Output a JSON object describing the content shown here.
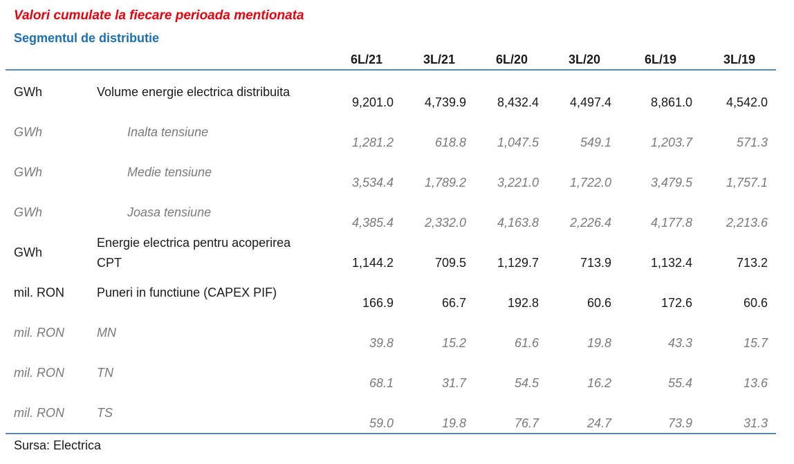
{
  "title": "Valori cumulate la fiecare perioada mentionata",
  "subtitle": "Segmentul de distributie",
  "columns": [
    "6L/21",
    "3L/21",
    "6L/20",
    "3L/20",
    "6L/19",
    "3L/19"
  ],
  "rows": [
    {
      "unit": "GWh",
      "label": "Volume energie electrica distribuita",
      "values": [
        "9,201.0",
        "4,739.9",
        "8,432.4",
        "4,497.4",
        "8,861.0",
        "4,542.0"
      ]
    },
    {
      "unit": "GWh",
      "label": "Inalta tensiune",
      "values": [
        "1,281.2",
        "618.8",
        "1,047.5",
        "549.1",
        "1,203.7",
        "571.3"
      ]
    },
    {
      "unit": "GWh",
      "label": "Medie tensiune",
      "values": [
        "3,534.4",
        "1,789.2",
        "3,221.0",
        "1,722.0",
        "3,479.5",
        "1,757.1"
      ]
    },
    {
      "unit": "GWh",
      "label": "Joasa tensiune",
      "values": [
        "4,385.4",
        "2,332.0",
        "4,163.8",
        "2,226.4",
        "4,177.8",
        "2,213.6"
      ]
    },
    {
      "unit": "GWh",
      "label_line1": "Energie electrica pentru acoperirea",
      "label_line2": "CPT",
      "values": [
        "1,144.2",
        "709.5",
        "1,129.7",
        "713.9",
        "1,132.4",
        "713.2"
      ]
    },
    {
      "unit": "mil. RON",
      "label": "Puneri in functiune (CAPEX PIF)",
      "values": [
        "166.9",
        "66.7",
        "192.8",
        "60.6",
        "172.6",
        "60.6"
      ]
    },
    {
      "unit": "mil. RON",
      "label": "MN",
      "values": [
        "39.8",
        "15.2",
        "61.6",
        "19.8",
        "43.3",
        "15.7"
      ]
    },
    {
      "unit": "mil. RON",
      "label": "TN",
      "values": [
        "68.1",
        "31.7",
        "54.5",
        "16.2",
        "55.4",
        "13.6"
      ]
    },
    {
      "unit": "mil. RON",
      "label": "TS",
      "values": [
        "59.0",
        "19.8",
        "76.7",
        "24.7",
        "73.9",
        "31.3"
      ]
    }
  ],
  "source": "Sursa: Electrica"
}
